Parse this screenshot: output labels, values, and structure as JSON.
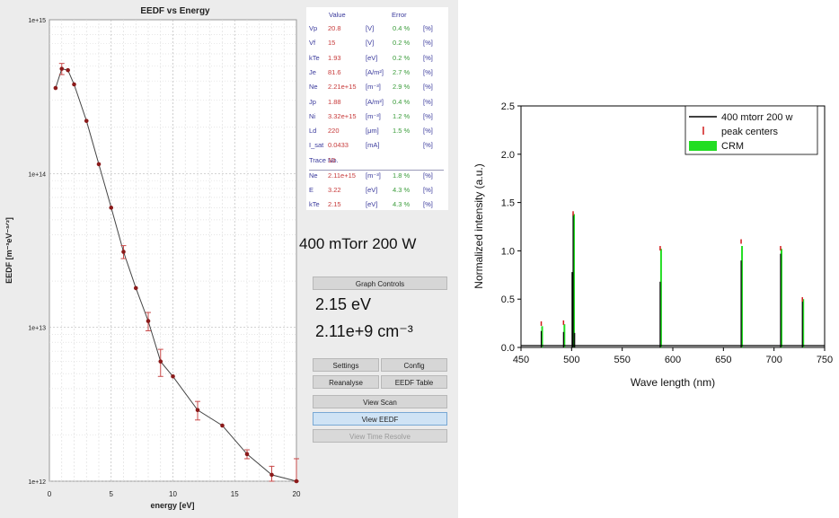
{
  "eedf": {
    "title": "EEDF vs Energy",
    "xlabel": "energy [eV]",
    "ylabel": "EEDF [m⁻³eV⁻³ᐟ²]",
    "x_ticks": [
      "0",
      "5",
      "10",
      "15",
      "20"
    ],
    "y_ticks": [
      "1e+12",
      "1e+13",
      "1e+14",
      "1e+15"
    ]
  },
  "params": {
    "header_value": "Value",
    "header_error": "Error",
    "rows": [
      {
        "name": "Vp",
        "value": "20.8",
        "unit": "[V]",
        "err": "0.4 %",
        "eunit": "[%]"
      },
      {
        "name": "Vf",
        "value": "15",
        "unit": "[V]",
        "err": "0.2 %",
        "eunit": "[%]"
      },
      {
        "name": "kTe",
        "value": "1.93",
        "unit": "[eV]",
        "err": "0.2 %",
        "eunit": "[%]"
      },
      {
        "name": "Je",
        "value": "81.6",
        "unit": "[A/m²]",
        "err": "2.7 %",
        "eunit": "[%]"
      },
      {
        "name": "Ne",
        "value": "2.21e+15",
        "unit": "[m⁻³]",
        "err": "2.9 %",
        "eunit": "[%]"
      },
      {
        "name": "Jp",
        "value": "1.88",
        "unit": "[A/m²]",
        "err": "0.4 %",
        "eunit": "[%]"
      },
      {
        "name": "Ni",
        "value": "3.32e+15",
        "unit": "[m⁻³]",
        "err": "1.2 %",
        "eunit": "[%]"
      },
      {
        "name": "Ld",
        "value": "220",
        "unit": "[μm]",
        "err": "1.5 %",
        "eunit": "[%]"
      },
      {
        "name": "I_sat",
        "value": "0.0433",
        "unit": "[mA]",
        "err": "",
        "eunit": "[%]"
      },
      {
        "name": "Trace No.",
        "value": "10",
        "unit": "",
        "err": "",
        "eunit": ""
      }
    ],
    "rows2": [
      {
        "name": "Ne",
        "value": "2.11e+15",
        "unit": "[m⁻³]",
        "err": "1.8 %",
        "eunit": "[%]"
      },
      {
        "name": "E",
        "value": "3.22",
        "unit": "[eV]",
        "err": "4.3 %",
        "eunit": "[%]"
      },
      {
        "name": "kTe",
        "value": "2.15",
        "unit": "[eV]",
        "err": "4.3 %",
        "eunit": "[%]"
      }
    ]
  },
  "condition": "400 mTorr 200 W",
  "result_te": "2.15 eV",
  "result_ne": "2.11e+9 cm⁻³",
  "buttons": {
    "graph_controls": "Graph Controls",
    "settings": "Settings",
    "config": "Config",
    "reanalyse": "Reanalyse",
    "eedf_table": "EEDF Table",
    "view_scan": "View Scan",
    "view_eedf": "View EEDF",
    "view_time_resolve": "View Time Resolve"
  },
  "spectrum": {
    "xlabel": "Wave length (nm)",
    "ylabel": "Normalized intensity (a.u.)",
    "x_ticks": [
      "450",
      "500",
      "550",
      "600",
      "650",
      "700",
      "750"
    ],
    "y_ticks": [
      "0.0",
      "0.5",
      "1.0",
      "1.5",
      "2.0",
      "2.5"
    ],
    "legend": [
      "400 mtorr 200 w",
      "peak centers",
      "CRM"
    ]
  },
  "colors": {
    "eedf_marker": "#8b1a1a",
    "error_bar": "#c84a4a",
    "spectrum_line": "#000000",
    "peak_centers": "#d11a1a",
    "crm": "#22dd22"
  },
  "chart_data": [
    {
      "type": "scatter",
      "title": "EEDF vs Energy",
      "xlabel": "energy [eV]",
      "ylabel": "EEDF [m⁻³eV⁻³ᐟ²]",
      "xlim": [
        0,
        20
      ],
      "ylim": [
        1000000000000.0,
        1000000000000000.0
      ],
      "yscale": "log",
      "grid": true,
      "x": [
        0.5,
        1.0,
        1.5,
        2.0,
        3.0,
        4.0,
        5.0,
        6.0,
        7.0,
        8.0,
        9.0,
        10.0,
        12.0,
        14.0,
        16.0,
        18.0,
        20.0
      ],
      "y": [
        360000000000000.0,
        480000000000000.0,
        470000000000000.0,
        380000000000000.0,
        220000000000000.0,
        115000000000000.0,
        60000000000000.0,
        31000000000000.0,
        18000000000000.0,
        11000000000000.0,
        6000000000000.0,
        4800000000000.0,
        2900000000000.0,
        2300000000000.0,
        1500000000000.0,
        1100000000000.0,
        1000000000000.0
      ],
      "err": [
        0,
        40000000000000.0,
        0,
        0,
        0,
        0,
        0,
        3000000000000.0,
        0,
        1500000000000.0,
        1200000000000.0,
        0,
        400000000000.0,
        0,
        100000000000.0,
        150000000000.0,
        400000000000.0
      ]
    },
    {
      "type": "line",
      "xlabel": "Wave length (nm)",
      "ylabel": "Normalized intensity (a.u.)",
      "xlim": [
        450,
        750
      ],
      "ylim": [
        0,
        2.5
      ],
      "series": [
        {
          "name": "400 mtorr 200 w",
          "x": [
            470.0,
            492.0,
            500.5,
            501.5,
            503.0,
            587.5,
            667.5,
            706.5,
            728.0
          ],
          "y": [
            0.17,
            0.16,
            0.78,
            1.38,
            0.15,
            0.68,
            0.9,
            0.97,
            0.48
          ]
        },
        {
          "name": "peak centers",
          "x": [
            470.0,
            492.0,
            501.5,
            587.5,
            667.5,
            706.5,
            728.0
          ],
          "y": [
            0.27,
            0.28,
            1.41,
            1.05,
            1.12,
            1.05,
            0.52
          ]
        },
        {
          "name": "CRM",
          "x": [
            470.0,
            492.0,
            501.5,
            587.5,
            667.5,
            706.5,
            728.0
          ],
          "y": [
            0.22,
            0.24,
            1.38,
            1.02,
            1.05,
            1.02,
            0.5
          ]
        }
      ],
      "legend_position": "top-right",
      "grid": false
    }
  ]
}
